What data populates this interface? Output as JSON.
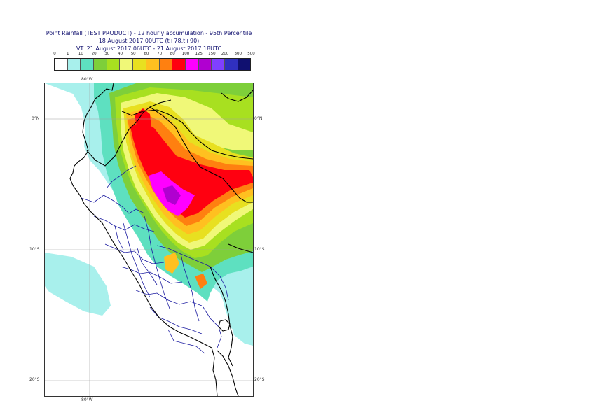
{
  "header": {
    "line1": "Point Rainfall (TEST PRODUCT) - 12 hourly accumulation - 95th Percentile",
    "line2": "18 August 2017 00UTC (t+78,t+90)",
    "line3": "VT: 21 August 2017 06UTC - 21 August 2017 18UTC"
  },
  "legend": {
    "labels": [
      "0",
      "1",
      "10",
      "20",
      "30",
      "40",
      "50",
      "60",
      "70",
      "80",
      "100",
      "125",
      "150",
      "200",
      "300",
      "500"
    ],
    "colors": [
      "#ffffff",
      "#a8f0ec",
      "#5ee0c0",
      "#7ecf3a",
      "#a8e020",
      "#f0f878",
      "#e8e020",
      "#ffc020",
      "#ff8010",
      "#ff0010",
      "#ff00ff",
      "#b000d0",
      "#8040ff",
      "#3030c0",
      "#101070"
    ]
  },
  "axes": {
    "top_lon": "80°W",
    "bottom_lon": "80°W",
    "lat_0_left": "0°N",
    "lat_0_right": "0°N",
    "lat_10_left": "10°S",
    "lat_10_right": "10°S",
    "lat_20_left": "20°S",
    "lat_20_right": "20°S"
  },
  "map": {
    "region": "Peru / Ecuador / western Brazil",
    "grid_color": "#a0a0a0",
    "coastline_color": "#000000",
    "province_border_color": "#1a1aa0"
  }
}
